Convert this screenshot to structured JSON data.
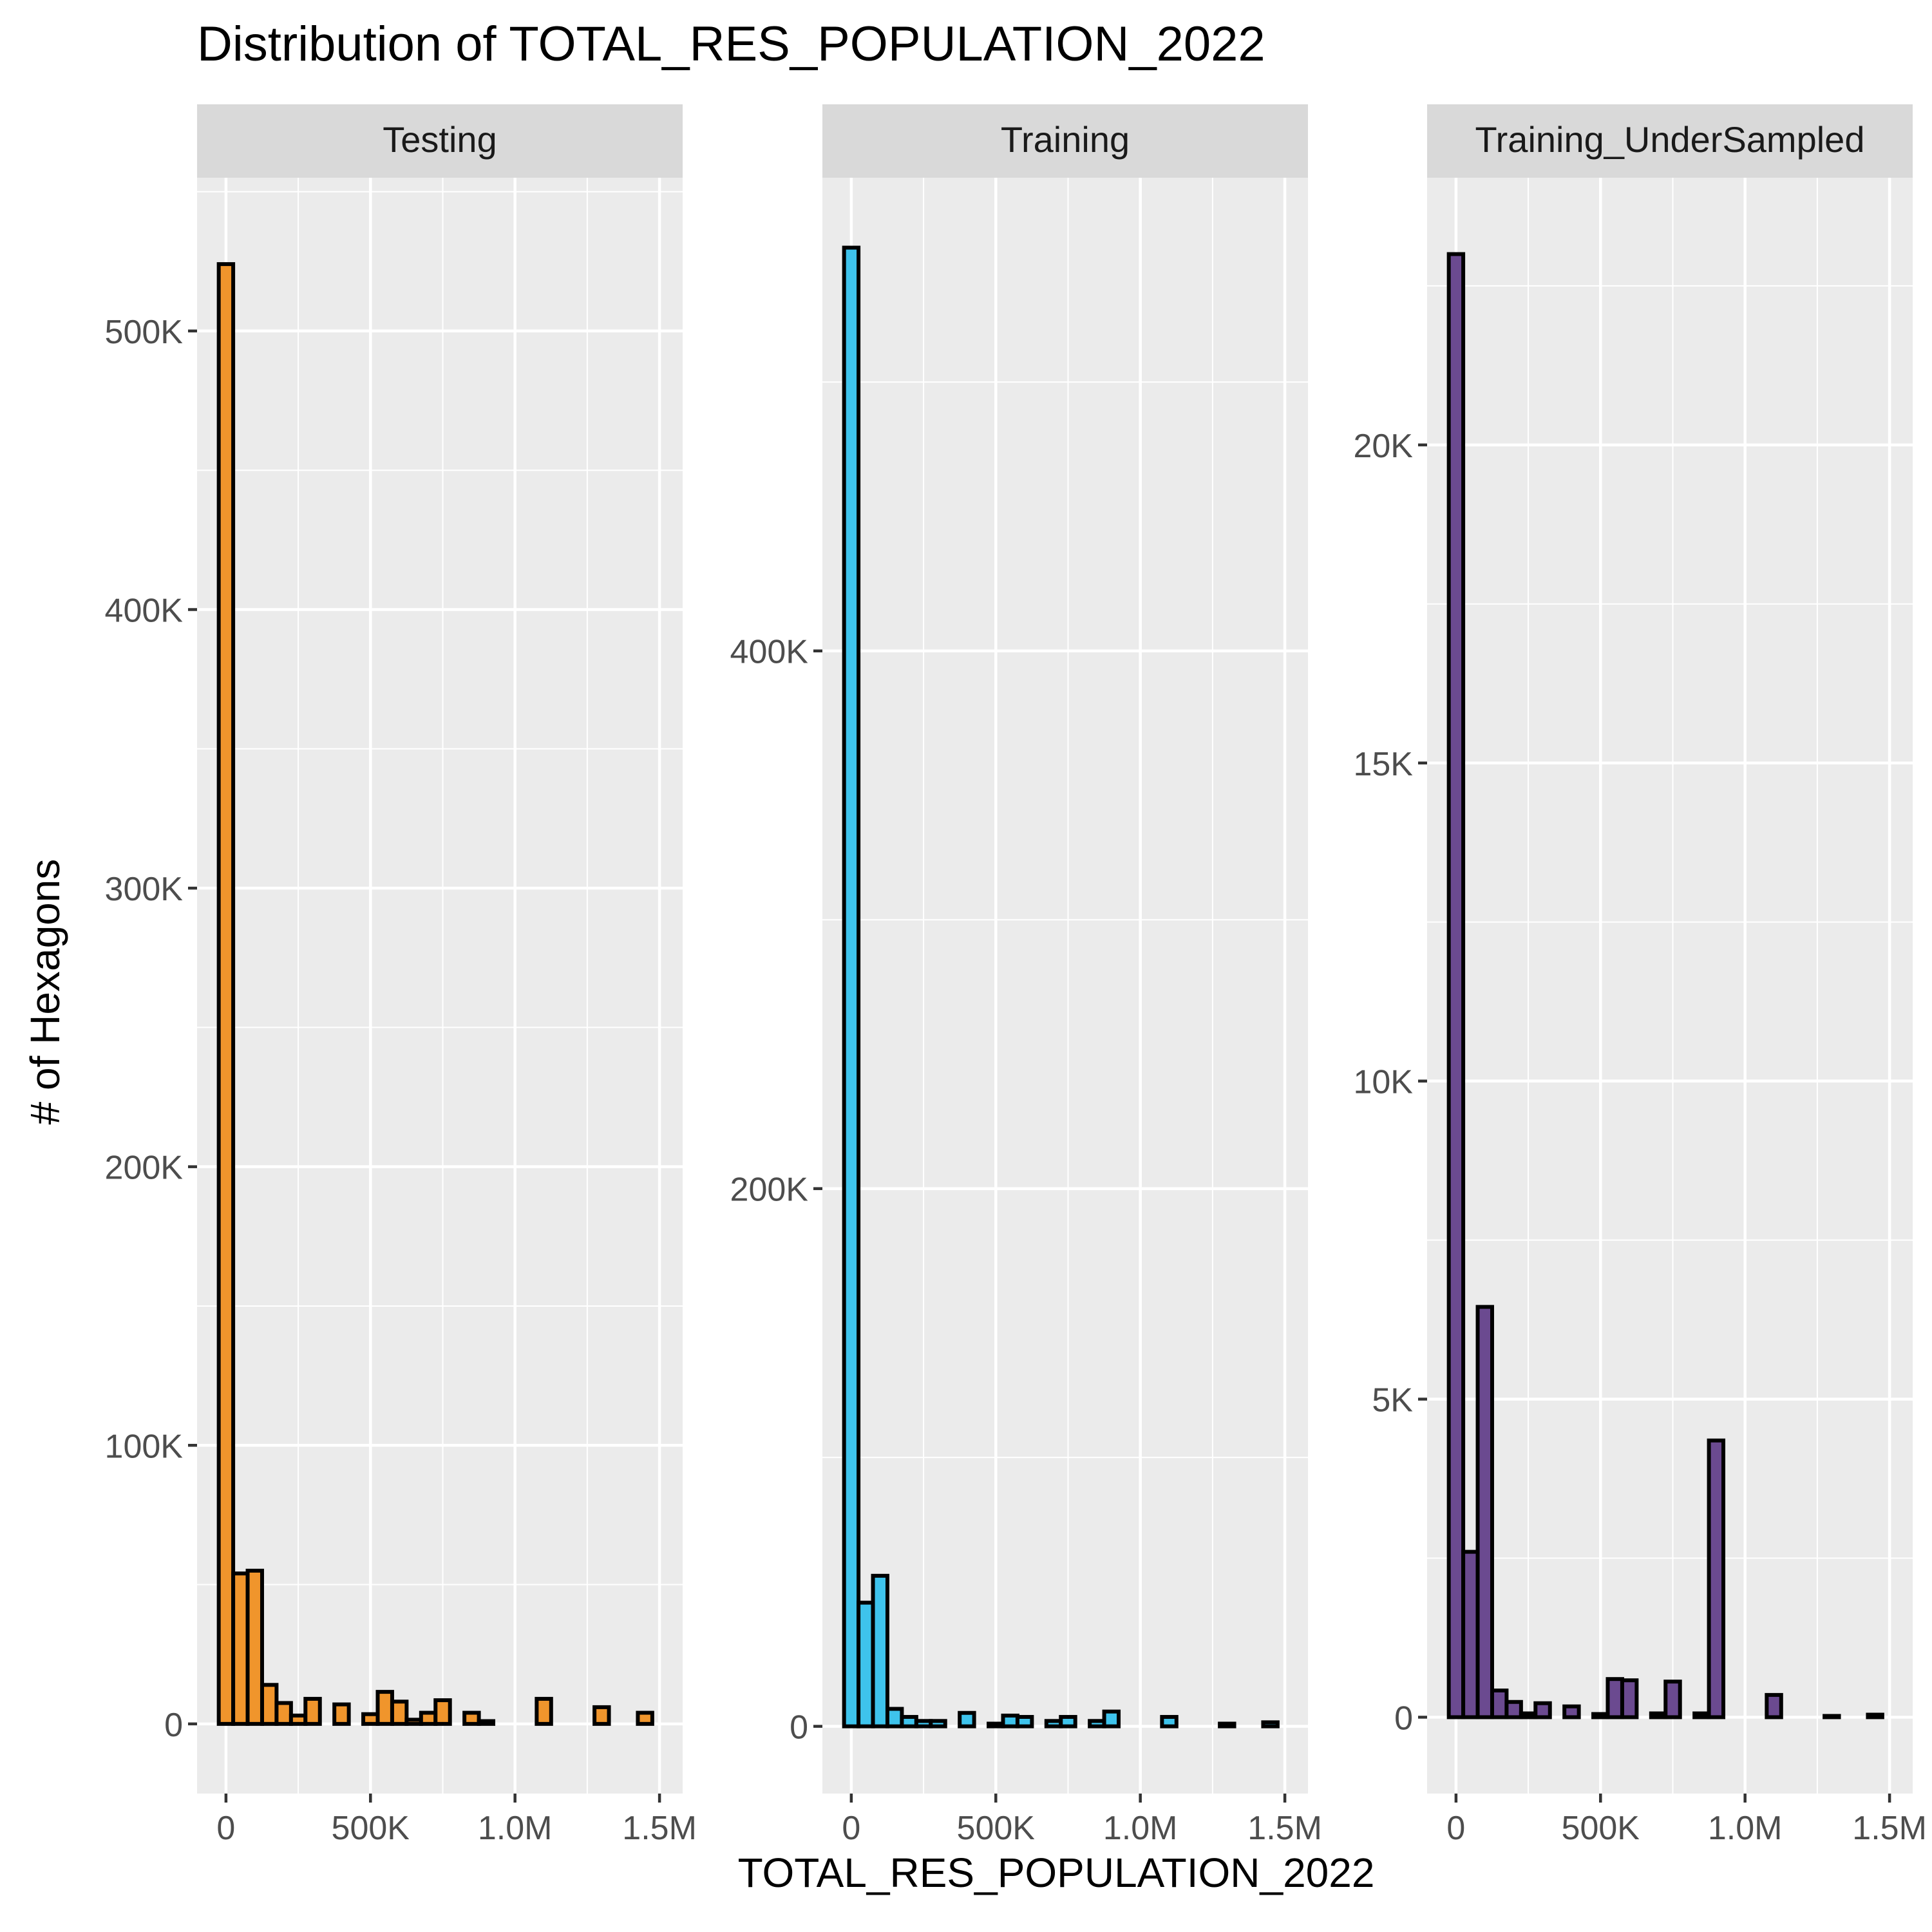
{
  "chart_data": {
    "type": "bar",
    "title": "Distribution of TOTAL_RES_POPULATION_2022",
    "xlabel": "TOTAL_RES_POPULATION_2022",
    "ylabel": "# of Hexagons",
    "grid": true,
    "bin_width": 50000,
    "x_ticks": [
      {
        "value": 0,
        "label": "0"
      },
      {
        "value": 500000,
        "label": "500K"
      },
      {
        "value": 1000000,
        "label": "1.0M"
      },
      {
        "value": 1500000,
        "label": "1.5M"
      }
    ],
    "panels": [
      {
        "name": "Testing",
        "color": "#f0952c",
        "xlim": [
          -100000,
          1580000
        ],
        "ylim": [
          -25000,
          555000
        ],
        "y_ticks": [
          {
            "value": 0,
            "label": "0"
          },
          {
            "value": 100000,
            "label": "100K"
          },
          {
            "value": 200000,
            "label": "200K"
          },
          {
            "value": 300000,
            "label": "300K"
          },
          {
            "value": 400000,
            "label": "400K"
          },
          {
            "value": 500000,
            "label": "500K"
          }
        ],
        "bins": [
          {
            "x": 0,
            "count": 524000
          },
          {
            "x": 50000,
            "count": 54000
          },
          {
            "x": 100000,
            "count": 55000
          },
          {
            "x": 150000,
            "count": 14000
          },
          {
            "x": 200000,
            "count": 7500
          },
          {
            "x": 250000,
            "count": 3000
          },
          {
            "x": 300000,
            "count": 9000
          },
          {
            "x": 350000,
            "count": 0
          },
          {
            "x": 400000,
            "count": 7000
          },
          {
            "x": 450000,
            "count": 0
          },
          {
            "x": 500000,
            "count": 3500
          },
          {
            "x": 550000,
            "count": 11500
          },
          {
            "x": 600000,
            "count": 8000
          },
          {
            "x": 650000,
            "count": 1500
          },
          {
            "x": 700000,
            "count": 4000
          },
          {
            "x": 750000,
            "count": 8500
          },
          {
            "x": 800000,
            "count": 0
          },
          {
            "x": 850000,
            "count": 4000
          },
          {
            "x": 900000,
            "count": 1000
          },
          {
            "x": 950000,
            "count": 0
          },
          {
            "x": 1000000,
            "count": 0
          },
          {
            "x": 1050000,
            "count": 0
          },
          {
            "x": 1100000,
            "count": 9000
          },
          {
            "x": 1150000,
            "count": 0
          },
          {
            "x": 1200000,
            "count": 0
          },
          {
            "x": 1250000,
            "count": 0
          },
          {
            "x": 1300000,
            "count": 6000
          },
          {
            "x": 1350000,
            "count": 0
          },
          {
            "x": 1400000,
            "count": 0
          },
          {
            "x": 1450000,
            "count": 4000
          }
        ]
      },
      {
        "name": "Training",
        "color": "#3ec3ec",
        "xlim": [
          -100000,
          1580000
        ],
        "ylim": [
          -25000,
          576000
        ],
        "y_ticks": [
          {
            "value": 0,
            "label": "0"
          },
          {
            "value": 200000,
            "label": "200K"
          },
          {
            "value": 400000,
            "label": "400K"
          }
        ],
        "bins": [
          {
            "x": 0,
            "count": 550000
          },
          {
            "x": 50000,
            "count": 46000
          },
          {
            "x": 100000,
            "count": 56000
          },
          {
            "x": 150000,
            "count": 6500
          },
          {
            "x": 200000,
            "count": 3500
          },
          {
            "x": 250000,
            "count": 2000
          },
          {
            "x": 300000,
            "count": 2000
          },
          {
            "x": 350000,
            "count": 0
          },
          {
            "x": 400000,
            "count": 5000
          },
          {
            "x": 450000,
            "count": 0
          },
          {
            "x": 500000,
            "count": 1000
          },
          {
            "x": 550000,
            "count": 4000
          },
          {
            "x": 600000,
            "count": 3500
          },
          {
            "x": 650000,
            "count": 0
          },
          {
            "x": 700000,
            "count": 2000
          },
          {
            "x": 750000,
            "count": 3500
          },
          {
            "x": 800000,
            "count": 0
          },
          {
            "x": 850000,
            "count": 2000
          },
          {
            "x": 900000,
            "count": 5500
          },
          {
            "x": 950000,
            "count": 0
          },
          {
            "x": 1000000,
            "count": 0
          },
          {
            "x": 1050000,
            "count": 0
          },
          {
            "x": 1100000,
            "count": 3500
          },
          {
            "x": 1150000,
            "count": 0
          },
          {
            "x": 1200000,
            "count": 0
          },
          {
            "x": 1250000,
            "count": 0
          },
          {
            "x": 1300000,
            "count": 1000
          },
          {
            "x": 1350000,
            "count": 0
          },
          {
            "x": 1400000,
            "count": 0
          },
          {
            "x": 1450000,
            "count": 1500
          }
        ]
      },
      {
        "name": "Training_UnderSampled",
        "color": "#6b4a90",
        "xlim": [
          -100000,
          1580000
        ],
        "ylim": [
          -1200,
          24200
        ],
        "y_ticks": [
          {
            "value": 0,
            "label": "0"
          },
          {
            "value": 5000,
            "label": "5K"
          },
          {
            "value": 10000,
            "label": "10K"
          },
          {
            "value": 15000,
            "label": "15K"
          },
          {
            "value": 20000,
            "label": "20K"
          }
        ],
        "bins": [
          {
            "x": 0,
            "count": 23000
          },
          {
            "x": 50000,
            "count": 2600
          },
          {
            "x": 100000,
            "count": 6450
          },
          {
            "x": 150000,
            "count": 420
          },
          {
            "x": 200000,
            "count": 240
          },
          {
            "x": 250000,
            "count": 60
          },
          {
            "x": 300000,
            "count": 220
          },
          {
            "x": 350000,
            "count": 0
          },
          {
            "x": 400000,
            "count": 170
          },
          {
            "x": 450000,
            "count": 0
          },
          {
            "x": 500000,
            "count": 50
          },
          {
            "x": 550000,
            "count": 600
          },
          {
            "x": 600000,
            "count": 580
          },
          {
            "x": 650000,
            "count": 0
          },
          {
            "x": 700000,
            "count": 60
          },
          {
            "x": 750000,
            "count": 560
          },
          {
            "x": 800000,
            "count": 0
          },
          {
            "x": 850000,
            "count": 60
          },
          {
            "x": 900000,
            "count": 4350
          },
          {
            "x": 950000,
            "count": 0
          },
          {
            "x": 1000000,
            "count": 0
          },
          {
            "x": 1050000,
            "count": 0
          },
          {
            "x": 1100000,
            "count": 350
          },
          {
            "x": 1150000,
            "count": 0
          },
          {
            "x": 1200000,
            "count": 0
          },
          {
            "x": 1250000,
            "count": 0
          },
          {
            "x": 1300000,
            "count": 20
          },
          {
            "x": 1350000,
            "count": 0
          },
          {
            "x": 1400000,
            "count": 0
          },
          {
            "x": 1450000,
            "count": 40
          }
        ]
      }
    ]
  }
}
